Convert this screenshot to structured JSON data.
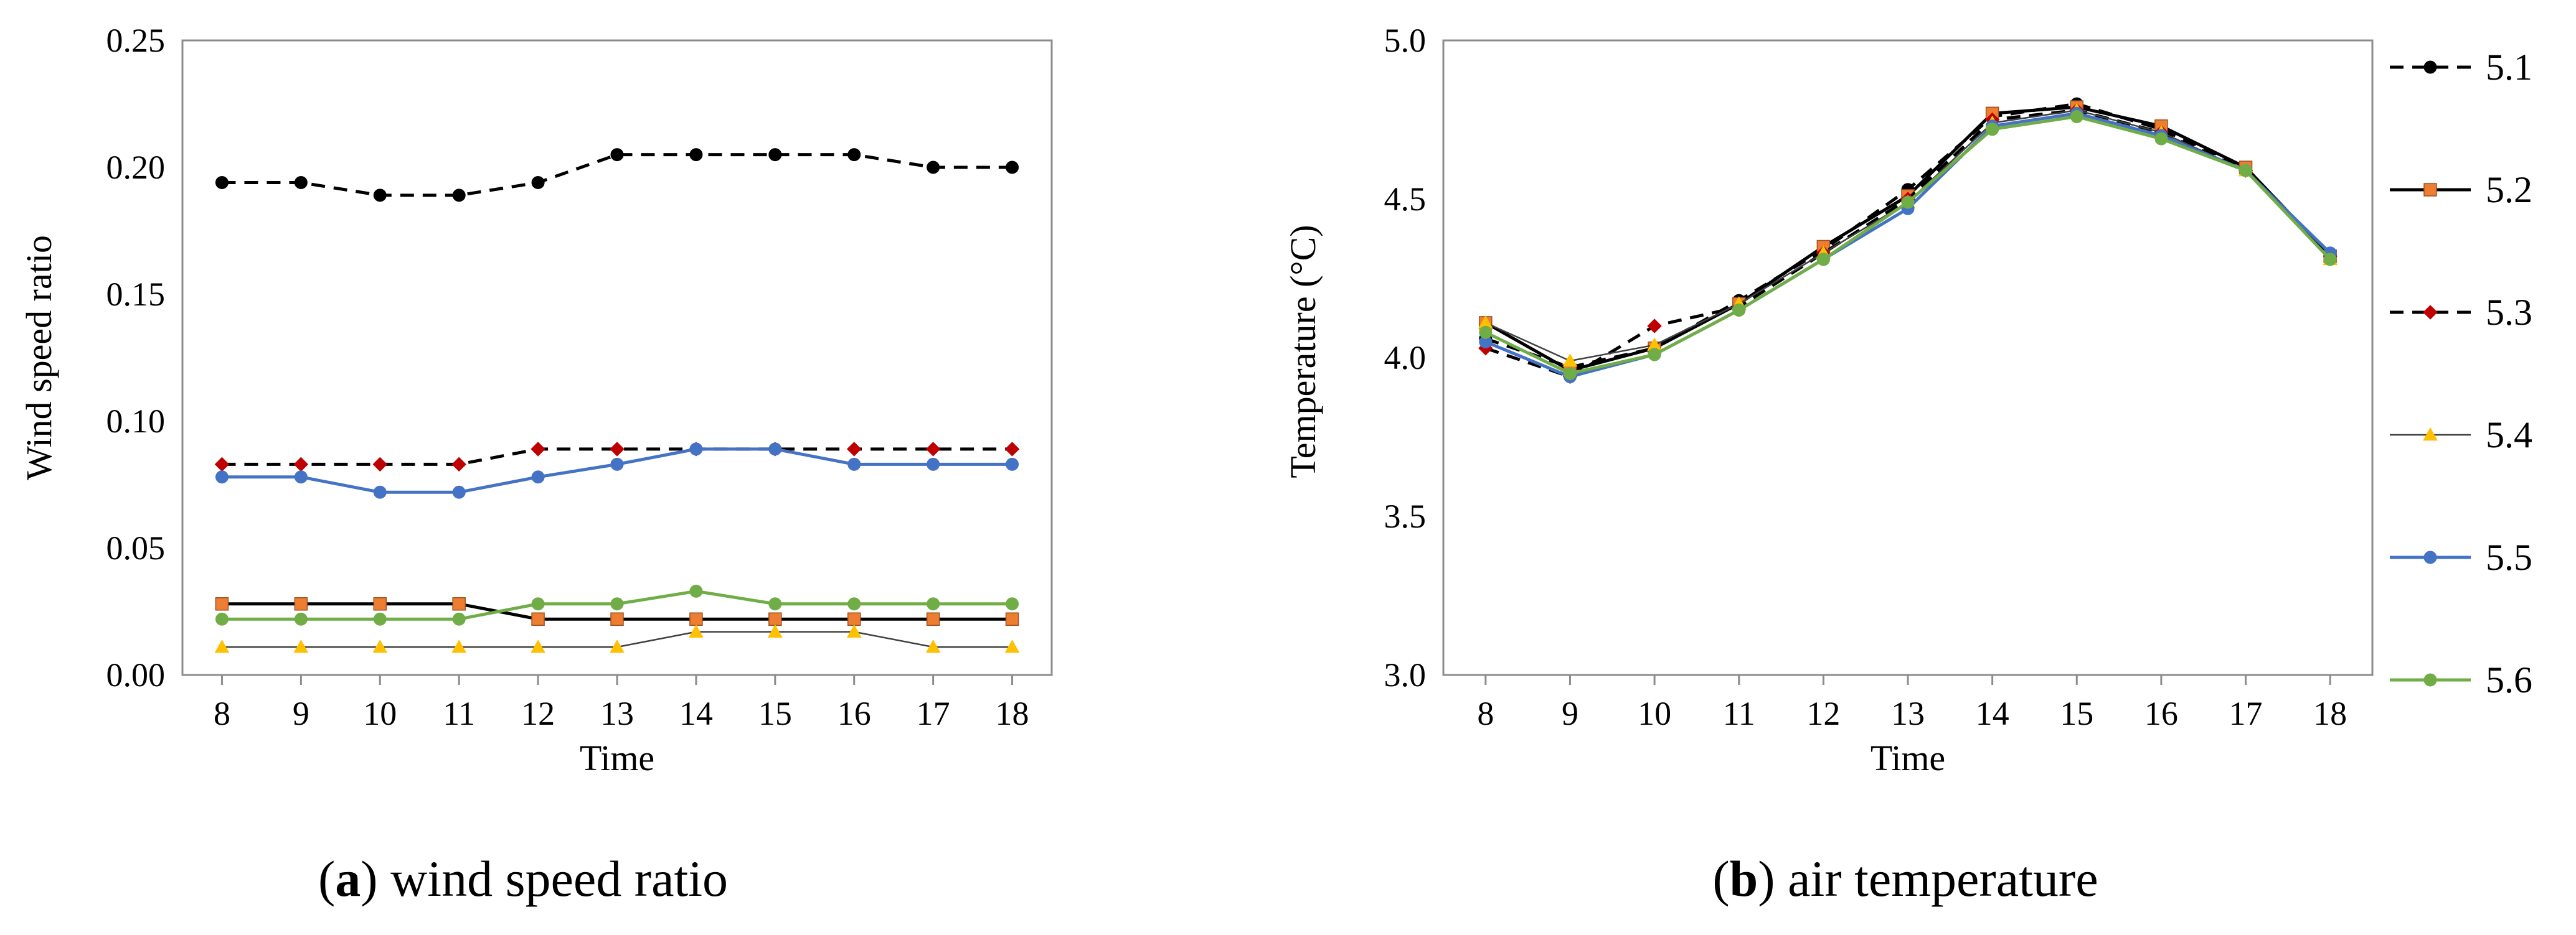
{
  "chart_data": [
    {
      "type": "line",
      "caption": {
        "open": "(",
        "letter": "a",
        "close": ")",
        "text": " wind speed ratio"
      },
      "xlabel": "Time",
      "ylabel": "Wind speed ratio",
      "xlim": [
        7.5,
        18.5
      ],
      "ylim": [
        0,
        0.25
      ],
      "x_ticks": [
        "8",
        "9",
        "10",
        "11",
        "12",
        "13",
        "14",
        "15",
        "16",
        "17",
        "18"
      ],
      "y_ticks": [
        "0.00",
        "0.05",
        "0.10",
        "0.15",
        "0.20",
        "0.25"
      ],
      "y_tick_values": [
        0,
        0.05,
        0.1,
        0.15,
        0.2,
        0.25
      ],
      "grid": false,
      "x": [
        8,
        9,
        10,
        11,
        12,
        13,
        14,
        15,
        16,
        17,
        18
      ],
      "series": [
        {
          "key": "5.1",
          "values": [
            0.194,
            0.194,
            0.189,
            0.189,
            0.194,
            0.205,
            0.205,
            0.205,
            0.205,
            0.2,
            0.2
          ]
        },
        {
          "key": "5.2",
          "values": [
            0.028,
            0.028,
            0.028,
            0.028,
            0.022,
            0.022,
            0.022,
            0.022,
            0.022,
            0.022,
            0.022
          ]
        },
        {
          "key": "5.3",
          "values": [
            0.083,
            0.083,
            0.083,
            0.083,
            0.089,
            0.089,
            0.089,
            0.089,
            0.089,
            0.089,
            0.089
          ]
        },
        {
          "key": "5.4",
          "values": [
            0.011,
            0.011,
            0.011,
            0.011,
            0.011,
            0.011,
            0.017,
            0.017,
            0.017,
            0.011,
            0.011
          ]
        },
        {
          "key": "5.5",
          "values": [
            0.078,
            0.078,
            0.072,
            0.072,
            0.078,
            0.083,
            0.089,
            0.089,
            0.083,
            0.083,
            0.083
          ]
        },
        {
          "key": "5.6",
          "values": [
            0.022,
            0.022,
            0.022,
            0.022,
            0.028,
            0.028,
            0.033,
            0.028,
            0.028,
            0.028,
            0.028
          ]
        }
      ]
    },
    {
      "type": "line",
      "caption": {
        "open": "(",
        "letter": "b",
        "close": ")",
        "text": " air temperature"
      },
      "xlabel": "Time",
      "ylabel": "Temperature (°C)",
      "xlim": [
        7.5,
        18.5
      ],
      "ylim": [
        3.0,
        5.0
      ],
      "x_ticks": [
        "8",
        "9",
        "10",
        "11",
        "12",
        "13",
        "14",
        "15",
        "16",
        "17",
        "18"
      ],
      "y_ticks": [
        "3.0",
        "3.5",
        "4.0",
        "4.5",
        "5.0"
      ],
      "y_tick_values": [
        3.0,
        3.5,
        4.0,
        4.5,
        5.0
      ],
      "grid": false,
      "legend_position": "right",
      "x": [
        8,
        9,
        10,
        11,
        12,
        13,
        14,
        15,
        16,
        17,
        18
      ],
      "series": [
        {
          "name": "5.1",
          "values": [
            4.06,
            3.97,
            4.03,
            4.18,
            4.34,
            4.53,
            4.76,
            4.8,
            4.72,
            4.6,
            4.32
          ]
        },
        {
          "name": "5.2",
          "values": [
            4.11,
            3.96,
            4.03,
            4.17,
            4.35,
            4.51,
            4.77,
            4.79,
            4.73,
            4.6,
            4.32
          ]
        },
        {
          "name": "5.3",
          "values": [
            4.03,
            3.94,
            4.1,
            4.16,
            4.33,
            4.5,
            4.75,
            4.78,
            4.71,
            4.59,
            4.32
          ]
        },
        {
          "name": "5.4",
          "values": [
            4.11,
            3.99,
            4.04,
            4.17,
            4.33,
            4.49,
            4.74,
            4.78,
            4.71,
            4.59,
            4.31
          ]
        },
        {
          "name": "5.5",
          "values": [
            4.05,
            3.94,
            4.01,
            4.15,
            4.31,
            4.47,
            4.73,
            4.77,
            4.7,
            4.59,
            4.33
          ]
        },
        {
          "name": "5.6",
          "values": [
            4.08,
            3.95,
            4.01,
            4.15,
            4.31,
            4.49,
            4.72,
            4.76,
            4.69,
            4.59,
            4.31
          ]
        }
      ]
    }
  ],
  "styles": {
    "5.1": {
      "color": "#000000",
      "marker": "circle",
      "dash": "dash",
      "fill": "#000000"
    },
    "5.2": {
      "color": "#000000",
      "marker": "square",
      "dash": "solid",
      "fill": "#ed7d31"
    },
    "5.3": {
      "color": "#000000",
      "marker": "diamond",
      "dash": "dash",
      "fill": "#c00000"
    },
    "5.4": {
      "color": "#404040",
      "marker": "triangle",
      "dash": "thin",
      "fill": "#ffc000"
    },
    "5.5": {
      "color": "#4472c4",
      "marker": "circle",
      "dash": "solid",
      "fill": "#4472c4"
    },
    "5.6": {
      "color": "#70ad47",
      "marker": "circle",
      "dash": "solid",
      "fill": "#70ad47"
    }
  }
}
